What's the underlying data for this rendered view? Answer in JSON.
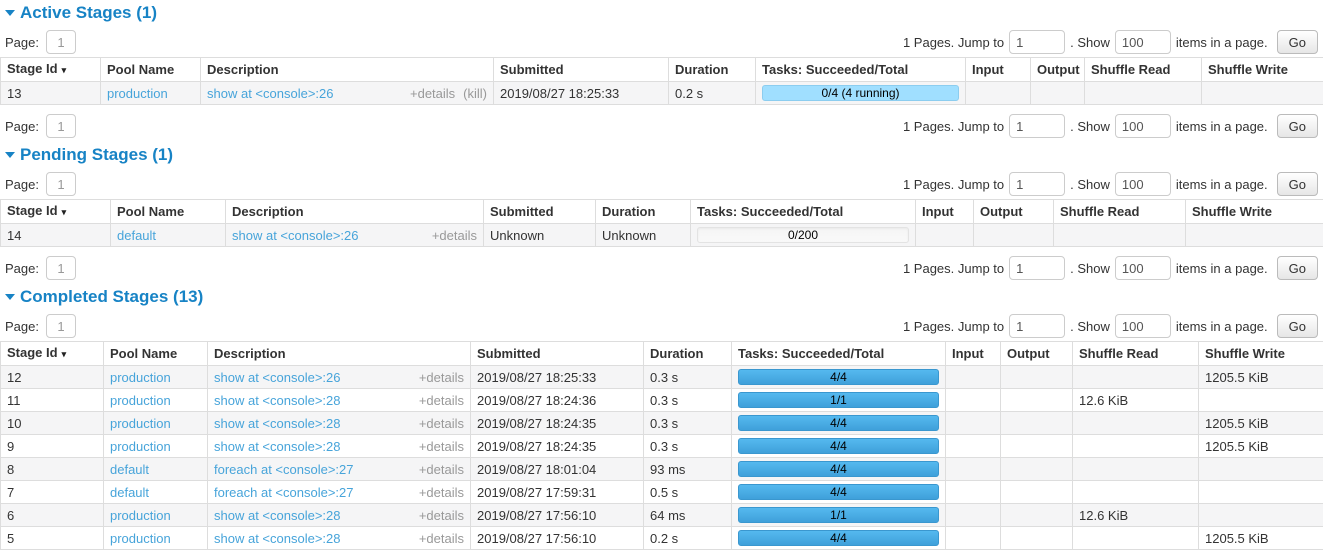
{
  "sort_arrow": "▾",
  "colors": {
    "section_header_blue": "#1783c5",
    "link_blue": "#47a4da",
    "bar_running": "#A0DFFF",
    "bar_done_top": "#55b9ef",
    "bar_done_bottom": "#3fa0da",
    "table_border": "#dddddd",
    "striped_row": "#f5f5f6"
  },
  "pagination": {
    "page_label": "Page:",
    "page_value": "1",
    "pages_count_text": "1 Pages. Jump to",
    "jump_value": "1",
    "show_separator": ". Show",
    "show_value": "100",
    "items_suffix": "items in a page.",
    "go_label": "Go"
  },
  "sections": [
    {
      "id": "active",
      "title": "Active Stages (1)",
      "sorted_column": 0,
      "has_bottom_pagination": true,
      "columns": [
        "Stage Id",
        "Pool Name",
        "Description",
        "Submitted",
        "Duration",
        "Tasks: Succeeded/Total",
        "Input",
        "Output",
        "Shuffle Read",
        "Shuffle Write"
      ],
      "rows": [
        {
          "stage_id": "13",
          "pool": "production",
          "desc": "show at <console>:26",
          "details": "+details",
          "kill": "(kill)",
          "submitted": "2019/08/27 18:25:33",
          "duration": "0.2 s",
          "tasks": {
            "label": "0/4 (4 running)",
            "state": "running",
            "percent": 100
          },
          "input": "",
          "output": "",
          "shuffle_read": "",
          "shuffle_write": ""
        }
      ]
    },
    {
      "id": "pending",
      "title": "Pending Stages (1)",
      "sorted_column": 0,
      "has_bottom_pagination": true,
      "columns": [
        "Stage Id",
        "Pool Name",
        "Description",
        "Submitted",
        "Duration",
        "Tasks: Succeeded/Total",
        "Input",
        "Output",
        "Shuffle Read",
        "Shuffle Write"
      ],
      "rows": [
        {
          "stage_id": "14",
          "pool": "default",
          "desc": "show at <console>:26",
          "details": "+details",
          "submitted": "Unknown",
          "duration": "Unknown",
          "tasks": {
            "label": "0/200",
            "state": "empty",
            "percent": 0
          },
          "input": "",
          "output": "",
          "shuffle_read": "",
          "shuffle_write": ""
        }
      ]
    },
    {
      "id": "completed",
      "title": "Completed Stages (13)",
      "sorted_column": 0,
      "has_bottom_pagination": false,
      "columns": [
        "Stage Id",
        "Pool Name",
        "Description",
        "Submitted",
        "Duration",
        "Tasks: Succeeded/Total",
        "Input",
        "Output",
        "Shuffle Read",
        "Shuffle Write"
      ],
      "rows": [
        {
          "stage_id": "12",
          "pool": "production",
          "desc": "show at <console>:26",
          "details": "+details",
          "submitted": "2019/08/27 18:25:33",
          "duration": "0.3 s",
          "tasks": {
            "label": "4/4",
            "state": "done",
            "percent": 100
          },
          "input": "",
          "output": "",
          "shuffle_read": "",
          "shuffle_write": "1205.5 KiB"
        },
        {
          "stage_id": "11",
          "pool": "production",
          "desc": "show at <console>:28",
          "details": "+details",
          "submitted": "2019/08/27 18:24:36",
          "duration": "0.3 s",
          "tasks": {
            "label": "1/1",
            "state": "done",
            "percent": 100
          },
          "input": "",
          "output": "",
          "shuffle_read": "12.6 KiB",
          "shuffle_write": ""
        },
        {
          "stage_id": "10",
          "pool": "production",
          "desc": "show at <console>:28",
          "details": "+details",
          "submitted": "2019/08/27 18:24:35",
          "duration": "0.3 s",
          "tasks": {
            "label": "4/4",
            "state": "done",
            "percent": 100
          },
          "input": "",
          "output": "",
          "shuffle_read": "",
          "shuffle_write": "1205.5 KiB"
        },
        {
          "stage_id": "9",
          "pool": "production",
          "desc": "show at <console>:28",
          "details": "+details",
          "submitted": "2019/08/27 18:24:35",
          "duration": "0.3 s",
          "tasks": {
            "label": "4/4",
            "state": "done",
            "percent": 100
          },
          "input": "",
          "output": "",
          "shuffle_read": "",
          "shuffle_write": "1205.5 KiB"
        },
        {
          "stage_id": "8",
          "pool": "default",
          "desc": "foreach at <console>:27",
          "details": "+details",
          "submitted": "2019/08/27 18:01:04",
          "duration": "93 ms",
          "tasks": {
            "label": "4/4",
            "state": "done",
            "percent": 100
          },
          "input": "",
          "output": "",
          "shuffle_read": "",
          "shuffle_write": ""
        },
        {
          "stage_id": "7",
          "pool": "default",
          "desc": "foreach at <console>:27",
          "details": "+details",
          "submitted": "2019/08/27 17:59:31",
          "duration": "0.5 s",
          "tasks": {
            "label": "4/4",
            "state": "done",
            "percent": 100
          },
          "input": "",
          "output": "",
          "shuffle_read": "",
          "shuffle_write": ""
        },
        {
          "stage_id": "6",
          "pool": "production",
          "desc": "show at <console>:28",
          "details": "+details",
          "submitted": "2019/08/27 17:56:10",
          "duration": "64 ms",
          "tasks": {
            "label": "1/1",
            "state": "done",
            "percent": 100
          },
          "input": "",
          "output": "",
          "shuffle_read": "12.6 KiB",
          "shuffle_write": ""
        },
        {
          "stage_id": "5",
          "pool": "production",
          "desc": "show at <console>:28",
          "details": "+details",
          "submitted": "2019/08/27 17:56:10",
          "duration": "0.2 s",
          "tasks": {
            "label": "4/4",
            "state": "done",
            "percent": 100
          },
          "input": "",
          "output": "",
          "shuffle_read": "",
          "shuffle_write": "1205.5 KiB"
        }
      ]
    }
  ]
}
